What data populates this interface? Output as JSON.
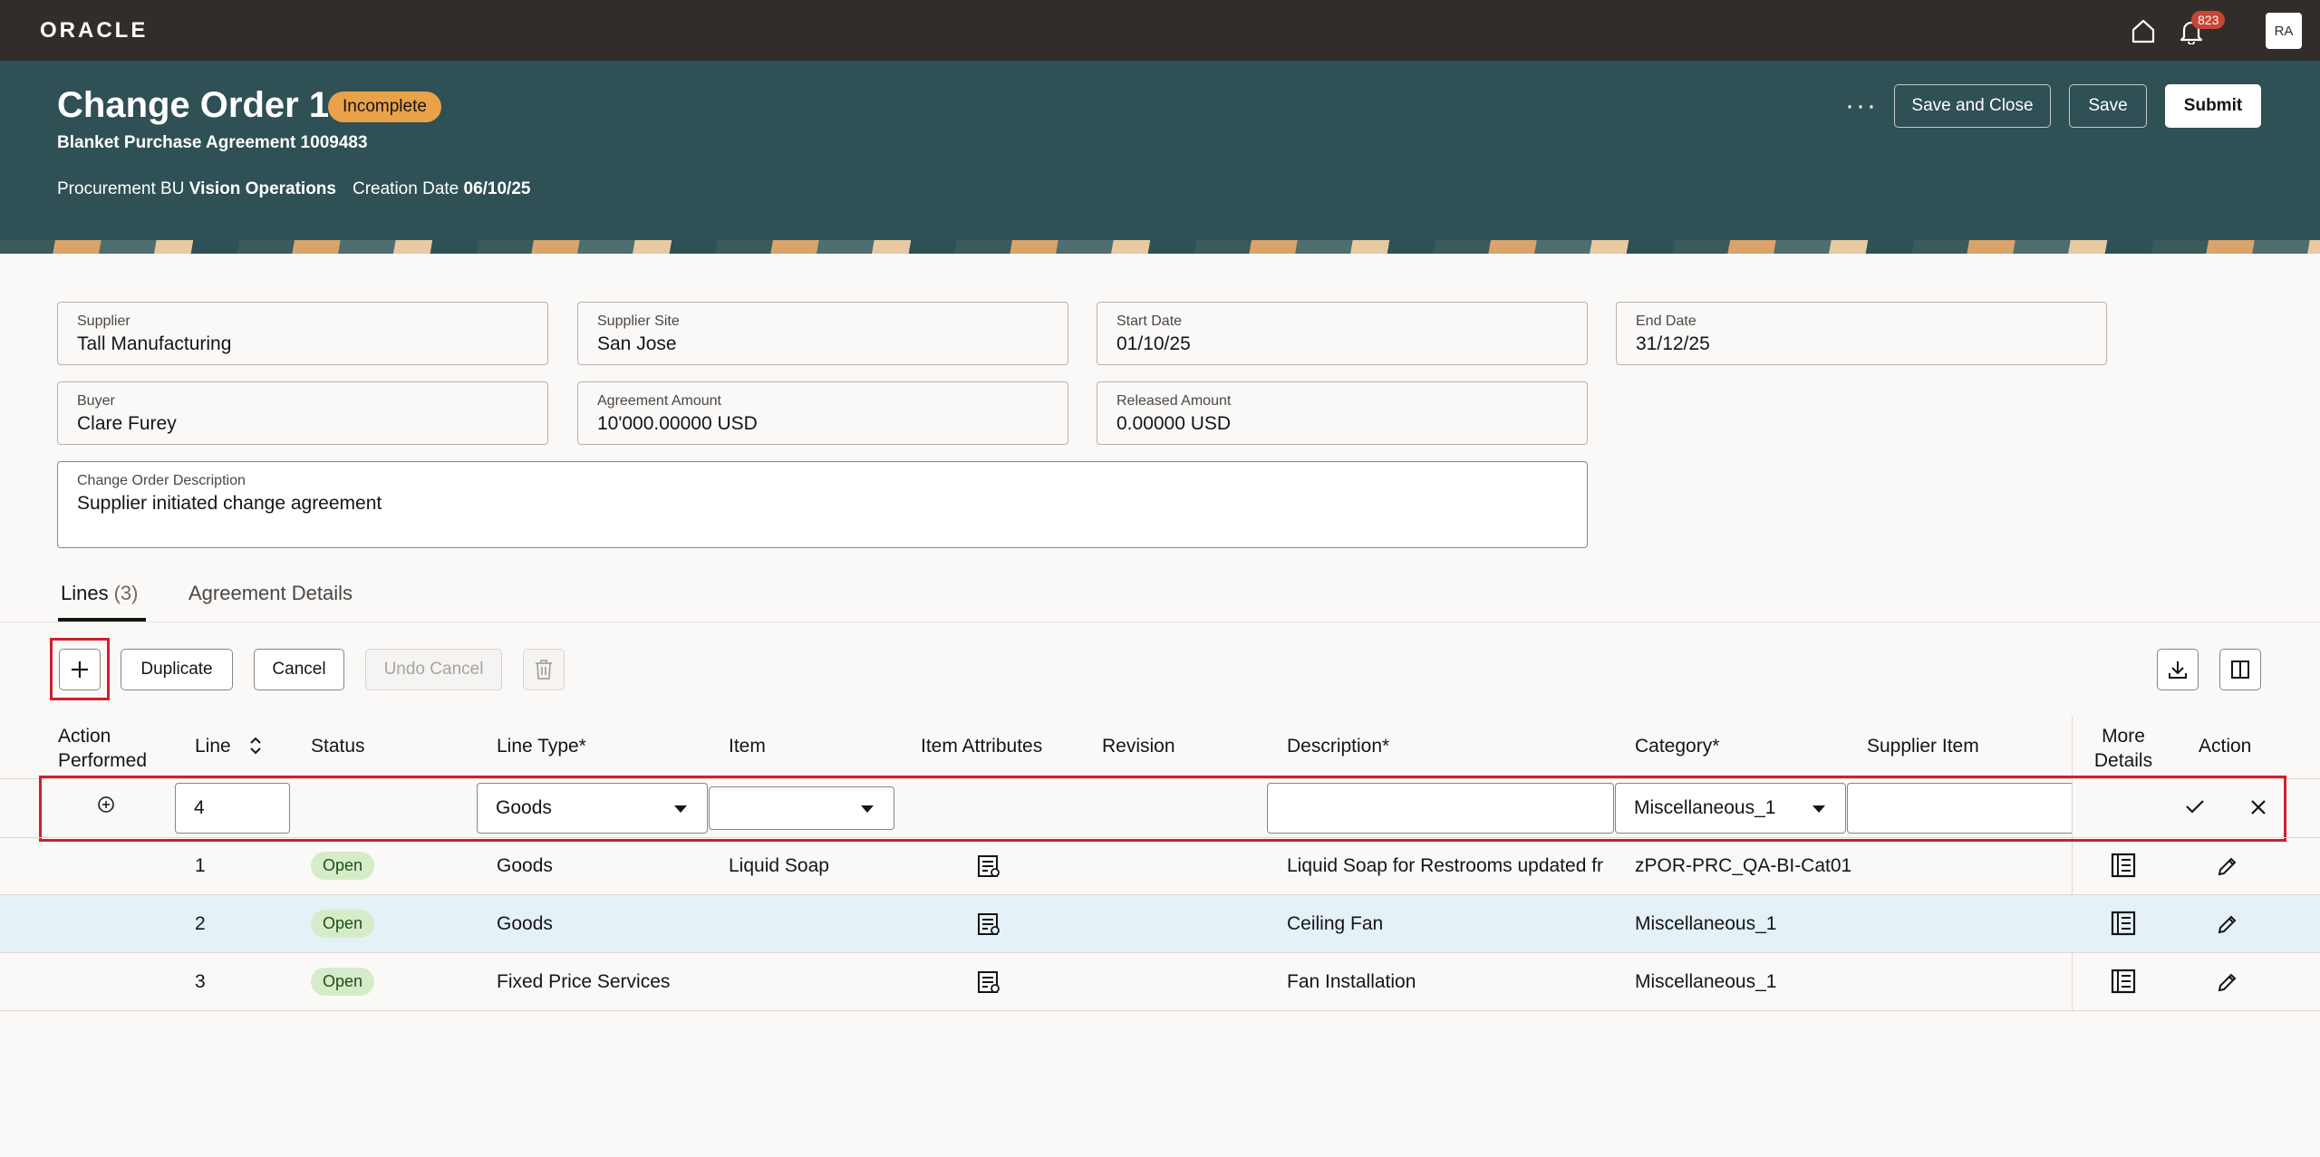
{
  "topbar": {
    "logo": "ORACLE",
    "notification_count": "823",
    "avatar_initials": "RA"
  },
  "header": {
    "title": "Change Order 1",
    "status": "Incomplete",
    "subtitle": "Blanket Purchase Agreement 1009483",
    "procurement_bu_label": "Procurement BU",
    "procurement_bu_value": "Vision Operations",
    "creation_date_label": "Creation Date",
    "creation_date_value": "06/10/25",
    "more_label": "···",
    "save_close_label": "Save and Close",
    "save_label": "Save",
    "submit_label": "Submit"
  },
  "fields": {
    "supplier": {
      "label": "Supplier",
      "value": "Tall Manufacturing"
    },
    "supplier_site": {
      "label": "Supplier Site",
      "value": "San Jose"
    },
    "start_date": {
      "label": "Start Date",
      "value": "01/10/25"
    },
    "end_date": {
      "label": "End Date",
      "value": "31/12/25"
    },
    "buyer": {
      "label": "Buyer",
      "value": "Clare Furey"
    },
    "agreement_amount": {
      "label": "Agreement Amount",
      "value": "10'000.00000 USD"
    },
    "released_amount": {
      "label": "Released Amount",
      "value": "0.00000 USD"
    },
    "description": {
      "label": "Change Order Description",
      "value": "Supplier initiated change agreement"
    }
  },
  "tabs": {
    "lines_label": "Lines",
    "lines_count": "(3)",
    "agreement_label": "Agreement Details"
  },
  "toolbar": {
    "duplicate_label": "Duplicate",
    "cancel_label": "Cancel",
    "undo_cancel_label": "Undo Cancel"
  },
  "table": {
    "headers": {
      "action_performed_1": "Action",
      "action_performed_2": "Performed",
      "line": "Line",
      "status": "Status",
      "line_type": "Line Type*",
      "item": "Item",
      "item_attributes": "Item Attributes",
      "revision": "Revision",
      "description": "Description*",
      "category": "Category*",
      "supplier_item": "Supplier Item",
      "more_details_1": "More",
      "more_details_2": "Details",
      "action": "Action"
    },
    "new_row": {
      "line": "4",
      "line_type": "Goods",
      "item": "",
      "description": "",
      "category": "Miscellaneous_1",
      "supplier_item": ""
    },
    "rows": [
      {
        "line": "1",
        "status": "Open",
        "line_type": "Goods",
        "item": "Liquid Soap",
        "description": "Liquid Soap for Restrooms updated fr",
        "category": "zPOR-PRC_QA-BI-Cat01"
      },
      {
        "line": "2",
        "status": "Open",
        "line_type": "Goods",
        "item": "",
        "description": "Ceiling Fan",
        "category": "Miscellaneous_1"
      },
      {
        "line": "3",
        "status": "Open",
        "line_type": "Fixed Price Services",
        "item": "",
        "description": "Fan Installation",
        "category": "Miscellaneous_1"
      }
    ]
  },
  "colors": {
    "topbar": "#312d2a",
    "header": "#2f5054",
    "status_incomplete": "#e9a14a",
    "status_open": "#d6ecc9",
    "highlight": "#d01f2d",
    "selected_row": "#e4f1f7"
  }
}
